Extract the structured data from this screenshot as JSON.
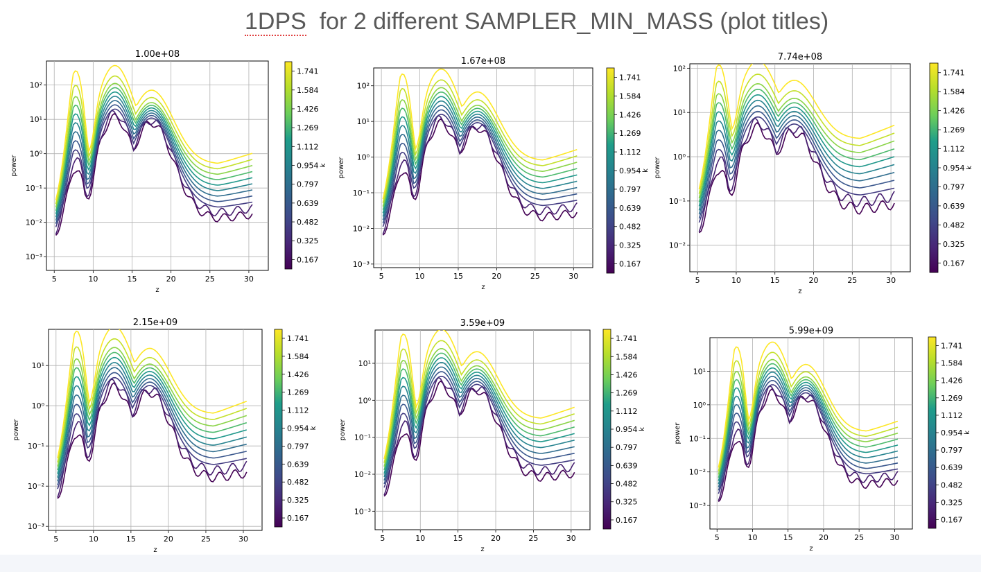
{
  "slide": {
    "title_first": "1DPS",
    "title_rest": "for 2 different SAMPLER_MIN_MASS (plot titles)"
  },
  "colormap": [
    "#440154",
    "#482677",
    "#3f4a8a",
    "#31678e",
    "#26838f",
    "#1f9d8a",
    "#6cce5a",
    "#b6de2b",
    "#fde725"
  ],
  "chart_data": [
    {
      "type": "line",
      "title": "1.00e+08",
      "xlabel": "z",
      "ylabel": "power",
      "colorbar_label": "k",
      "colorbar_ticks": [
        "0.167",
        "0.325",
        "0.482",
        "0.639",
        "0.797",
        "0.954",
        "1.112",
        "1.269",
        "1.426",
        "1.584",
        "1.741"
      ],
      "x_ticks": [
        "5",
        "10",
        "15",
        "20",
        "25",
        "30"
      ],
      "xlim": [
        4,
        32.5
      ],
      "y_scale": "log",
      "ylim_log10": [
        -3.4,
        2.7
      ],
      "y_ticks": [
        {
          "exp": -3,
          "label": "10⁻³"
        },
        {
          "exp": -2,
          "label": "10⁻²"
        },
        {
          "exp": -1,
          "label": "10⁻¹"
        },
        {
          "exp": 0,
          "label": "10⁰"
        },
        {
          "exp": 1,
          "label": "10¹"
        },
        {
          "exp": 2,
          "label": "10²"
        }
      ],
      "peak_log10": 2.3,
      "low_log10": -3.1,
      "grid": true
    },
    {
      "type": "line",
      "title": "1.67e+08",
      "xlabel": "z",
      "ylabel": "power",
      "colorbar_label": "k",
      "colorbar_ticks": [
        "0.167",
        "0.325",
        "0.482",
        "0.639",
        "0.797",
        "0.954",
        "1.112",
        "1.269",
        "1.426",
        "1.584",
        "1.741"
      ],
      "x_ticks": [
        "5",
        "10",
        "15",
        "20",
        "25",
        "30"
      ],
      "xlim": [
        4,
        32.5
      ],
      "y_scale": "log",
      "ylim_log10": [
        -3.1,
        2.5
      ],
      "y_ticks": [
        {
          "exp": -3,
          "label": "10⁻³"
        },
        {
          "exp": -2,
          "label": "10⁻²"
        },
        {
          "exp": -1,
          "label": "10⁻¹"
        },
        {
          "exp": 0,
          "label": "10⁰"
        },
        {
          "exp": 1,
          "label": "10¹"
        },
        {
          "exp": 2,
          "label": "10²"
        }
      ],
      "peak_log10": 2.2,
      "low_log10": -2.9,
      "grid": true
    },
    {
      "type": "line",
      "title": "7.74e+08",
      "xlabel": "z",
      "ylabel": "power",
      "colorbar_label": "k",
      "colorbar_ticks": [
        "0.167",
        "0.325",
        "0.482",
        "0.639",
        "0.797",
        "0.954",
        "1.112",
        "1.269",
        "1.426",
        "1.584",
        "1.741"
      ],
      "x_ticks": [
        "5",
        "10",
        "15",
        "20",
        "25",
        "30"
      ],
      "xlim": [
        4,
        32.5
      ],
      "y_scale": "log",
      "ylim_log10": [
        -2.6,
        2.1
      ],
      "y_ticks": [
        {
          "exp": -2,
          "label": "10⁻²"
        },
        {
          "exp": -1,
          "label": "10⁻¹"
        },
        {
          "exp": 0,
          "label": "10⁰"
        },
        {
          "exp": 1,
          "label": "10¹"
        },
        {
          "exp": 2,
          "label": "10²"
        }
      ],
      "peak_log10": 1.9,
      "low_log10": -2.4,
      "grid": true
    },
    {
      "type": "line",
      "title": "2.15e+09",
      "xlabel": "z",
      "ylabel": "power",
      "colorbar_label": "k",
      "colorbar_ticks": [
        "0.167",
        "0.325",
        "0.482",
        "0.639",
        "0.797",
        "0.954",
        "1.112",
        "1.269",
        "1.426",
        "1.584",
        "1.741"
      ],
      "x_ticks": [
        "5",
        "10",
        "15",
        "20",
        "25",
        "30"
      ],
      "xlim": [
        4,
        32.5
      ],
      "y_scale": "log",
      "ylim_log10": [
        -3.1,
        1.9
      ],
      "y_ticks": [
        {
          "exp": -3,
          "label": "10⁻³"
        },
        {
          "exp": -2,
          "label": "10⁻²"
        },
        {
          "exp": -1,
          "label": "10⁻¹"
        },
        {
          "exp": 0,
          "label": "10⁰"
        },
        {
          "exp": 1,
          "label": "10¹"
        }
      ],
      "peak_log10": 1.7,
      "low_log10": -3.0,
      "grid": true
    },
    {
      "type": "line",
      "title": "3.59e+09",
      "xlabel": "z",
      "ylabel": "power",
      "colorbar_label": "k",
      "colorbar_ticks": [
        "0.167",
        "0.325",
        "0.482",
        "0.639",
        "0.797",
        "0.954",
        "1.112",
        "1.269",
        "1.426",
        "1.584",
        "1.741"
      ],
      "x_ticks": [
        "5",
        "10",
        "15",
        "20",
        "25",
        "30"
      ],
      "xlim": [
        4,
        32.5
      ],
      "y_scale": "log",
      "ylim_log10": [
        -3.5,
        1.9
      ],
      "y_ticks": [
        {
          "exp": -3,
          "label": "10⁻³"
        },
        {
          "exp": -2,
          "label": "10⁻²"
        },
        {
          "exp": -1,
          "label": "10⁻¹"
        },
        {
          "exp": 0,
          "label": "10⁰"
        },
        {
          "exp": 1,
          "label": "10¹"
        }
      ],
      "peak_log10": 1.65,
      "low_log10": -3.3,
      "grid": true
    },
    {
      "type": "line",
      "title": "5.99e+09",
      "xlabel": "z",
      "ylabel": "power",
      "colorbar_label": "k",
      "colorbar_ticks": [
        "0.167",
        "0.325",
        "0.482",
        "0.639",
        "0.797",
        "0.954",
        "1.112",
        "1.269",
        "1.426",
        "1.584",
        "1.741"
      ],
      "x_ticks": [
        "5",
        "10",
        "15",
        "20",
        "25",
        "30"
      ],
      "xlim": [
        4,
        32.5
      ],
      "y_scale": "log",
      "ylim_log10": [
        -3.7,
        2.0
      ],
      "y_ticks": [
        {
          "exp": -3,
          "label": "10⁻³"
        },
        {
          "exp": -2,
          "label": "10⁻²"
        },
        {
          "exp": -1,
          "label": "10⁻¹"
        },
        {
          "exp": 0,
          "label": "10⁰"
        },
        {
          "exp": 1,
          "label": "10¹"
        }
      ],
      "peak_log10": 1.6,
      "low_log10": -3.6,
      "grid": true
    }
  ]
}
